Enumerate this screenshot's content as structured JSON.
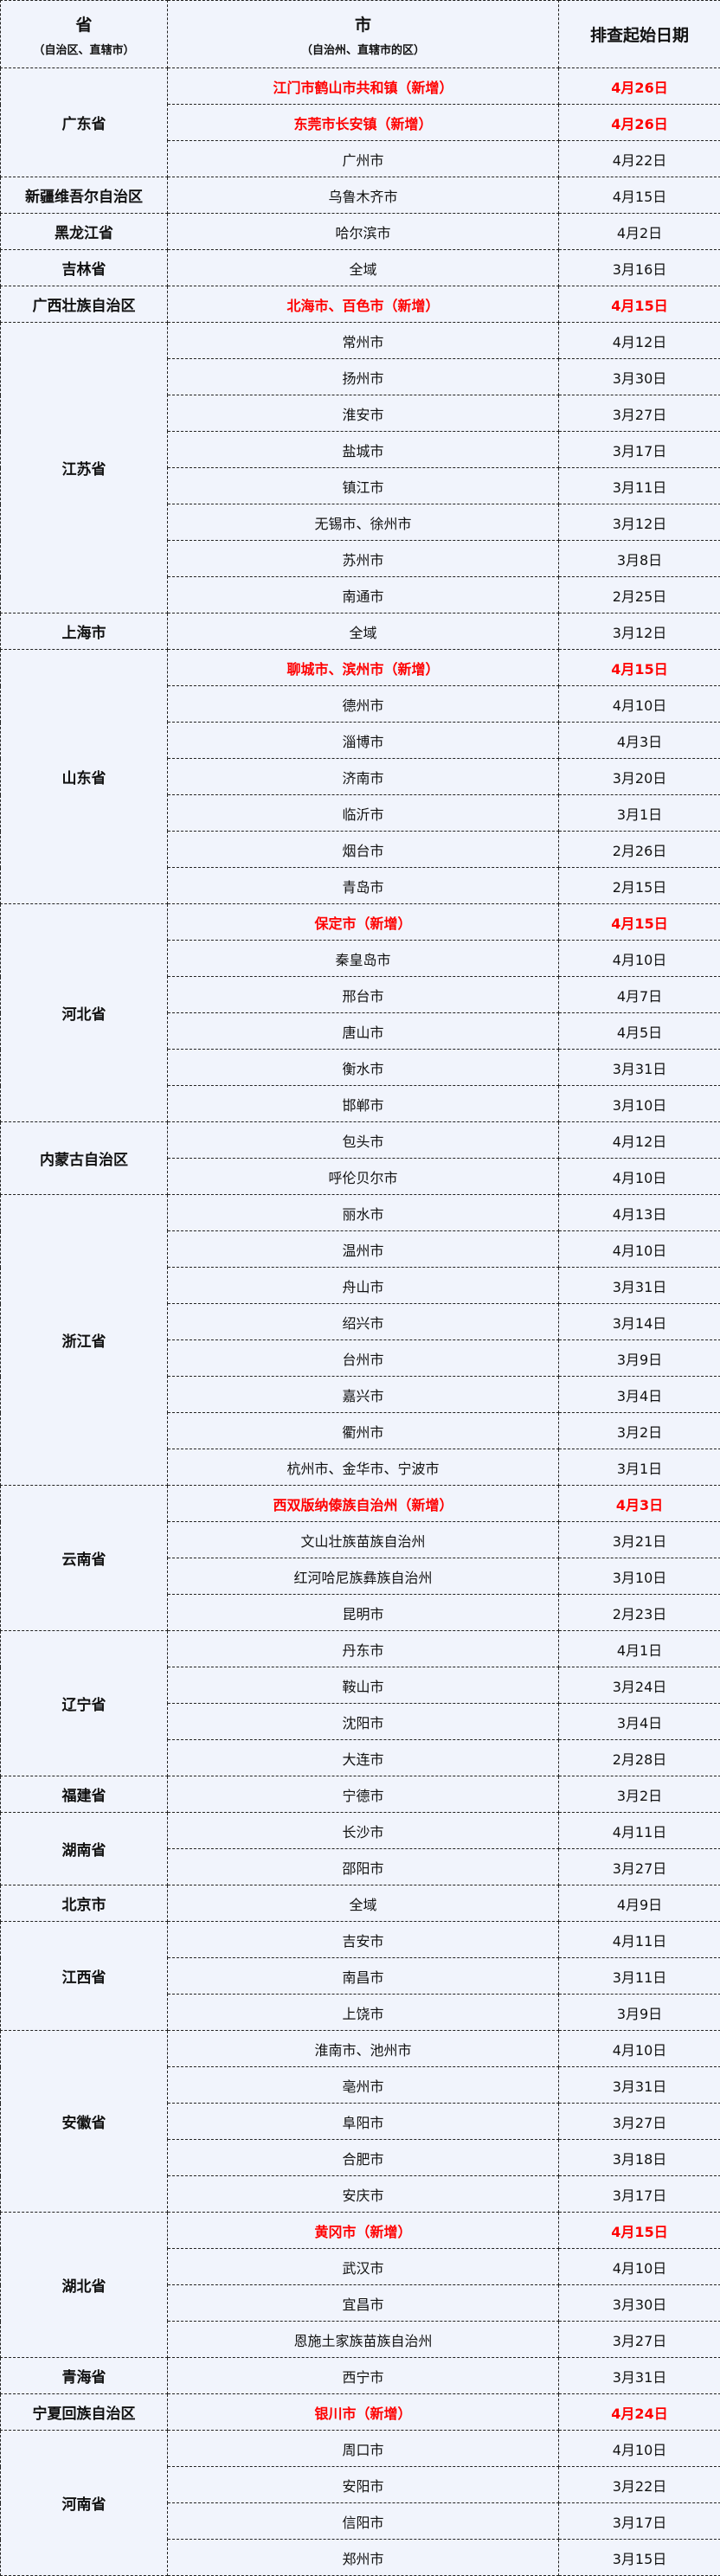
{
  "header": {
    "province": "省",
    "province_sub": "（自治区、直辖市）",
    "city": "市",
    "city_sub": "（自治州、直辖市的区）",
    "date": "排查起始日期"
  },
  "colors": {
    "new_highlight": "#ff0000",
    "background": "#f1f4fc"
  },
  "provinces": [
    {
      "name": "广东省",
      "cities": [
        {
          "name": "江门市鹤山市共和镇（新增）",
          "date": "4月26日",
          "new": true
        },
        {
          "name": "东莞市长安镇（新增）",
          "date": "4月26日",
          "new": true
        },
        {
          "name": "广州市",
          "date": "4月22日"
        }
      ]
    },
    {
      "name": "新疆维吾尔自治区",
      "cities": [
        {
          "name": "乌鲁木齐市",
          "date": "4月15日"
        }
      ]
    },
    {
      "name": "黑龙江省",
      "cities": [
        {
          "name": "哈尔滨市",
          "date": "4月2日"
        }
      ]
    },
    {
      "name": "吉林省",
      "cities": [
        {
          "name": "全域",
          "date": "3月16日"
        }
      ]
    },
    {
      "name": "广西壮族自治区",
      "cities": [
        {
          "name": "北海市、百色市（新增）",
          "date": "4月15日",
          "new": true
        }
      ]
    },
    {
      "name": "江苏省",
      "cities": [
        {
          "name": "常州市",
          "date": "4月12日"
        },
        {
          "name": "扬州市",
          "date": "3月30日"
        },
        {
          "name": "淮安市",
          "date": "3月27日"
        },
        {
          "name": "盐城市",
          "date": "3月17日"
        },
        {
          "name": "镇江市",
          "date": "3月11日"
        },
        {
          "name": "无锡市、徐州市",
          "date": "3月12日"
        },
        {
          "name": "苏州市",
          "date": "3月8日"
        },
        {
          "name": "南通市",
          "date": "2月25日"
        }
      ]
    },
    {
      "name": "上海市",
      "cities": [
        {
          "name": "全域",
          "date": "3月12日"
        }
      ]
    },
    {
      "name": "山东省",
      "cities": [
        {
          "name": "聊城市、滨州市（新增）",
          "date": "4月15日",
          "new": true
        },
        {
          "name": "德州市",
          "date": "4月10日"
        },
        {
          "name": "淄博市",
          "date": "4月3日"
        },
        {
          "name": "济南市",
          "date": "3月20日"
        },
        {
          "name": "临沂市",
          "date": "3月1日"
        },
        {
          "name": "烟台市",
          "date": "2月26日"
        },
        {
          "name": "青岛市",
          "date": "2月15日"
        }
      ]
    },
    {
      "name": "河北省",
      "cities": [
        {
          "name": "保定市（新增）",
          "date": "4月15日",
          "new": true
        },
        {
          "name": "秦皇岛市",
          "date": "4月10日"
        },
        {
          "name": "邢台市",
          "date": "4月7日"
        },
        {
          "name": "唐山市",
          "date": "4月5日"
        },
        {
          "name": "衡水市",
          "date": "3月31日"
        },
        {
          "name": "邯郸市",
          "date": "3月10日"
        }
      ]
    },
    {
      "name": "内蒙古自治区",
      "cities": [
        {
          "name": "包头市",
          "date": "4月12日"
        },
        {
          "name": "呼伦贝尔市",
          "date": "4月10日"
        }
      ]
    },
    {
      "name": "浙江省",
      "cities": [
        {
          "name": "丽水市",
          "date": "4月13日"
        },
        {
          "name": "温州市",
          "date": "4月10日"
        },
        {
          "name": "舟山市",
          "date": "3月31日"
        },
        {
          "name": "绍兴市",
          "date": "3月14日"
        },
        {
          "name": "台州市",
          "date": "3月9日"
        },
        {
          "name": "嘉兴市",
          "date": "3月4日"
        },
        {
          "name": "衢州市",
          "date": "3月2日"
        },
        {
          "name": "杭州市、金华市、宁波市",
          "date": "3月1日"
        }
      ]
    },
    {
      "name": "云南省",
      "cities": [
        {
          "name": "西双版纳傣族自治州（新增）",
          "date": "4月3日",
          "new": true
        },
        {
          "name": "文山壮族苗族自治州",
          "date": "3月21日"
        },
        {
          "name": "红河哈尼族彝族自治州",
          "date": "3月10日"
        },
        {
          "name": "昆明市",
          "date": "2月23日"
        }
      ]
    },
    {
      "name": "辽宁省",
      "cities": [
        {
          "name": "丹东市",
          "date": "4月1日"
        },
        {
          "name": "鞍山市",
          "date": "3月24日"
        },
        {
          "name": "沈阳市",
          "date": "3月4日"
        },
        {
          "name": "大连市",
          "date": "2月28日"
        }
      ]
    },
    {
      "name": "福建省",
      "cities": [
        {
          "name": "宁德市",
          "date": "3月2日"
        }
      ]
    },
    {
      "name": "湖南省",
      "cities": [
        {
          "name": "长沙市",
          "date": "4月11日"
        },
        {
          "name": "邵阳市",
          "date": "3月27日"
        }
      ]
    },
    {
      "name": "北京市",
      "cities": [
        {
          "name": "全域",
          "date": "4月9日"
        }
      ]
    },
    {
      "name": "江西省",
      "cities": [
        {
          "name": "吉安市",
          "date": "4月11日"
        },
        {
          "name": "南昌市",
          "date": "3月11日"
        },
        {
          "name": "上饶市",
          "date": "3月9日"
        }
      ]
    },
    {
      "name": "安徽省",
      "cities": [
        {
          "name": "淮南市、池州市",
          "date": "4月10日"
        },
        {
          "name": "亳州市",
          "date": "3月31日"
        },
        {
          "name": "阜阳市",
          "date": "3月27日"
        },
        {
          "name": "合肥市",
          "date": "3月18日"
        },
        {
          "name": "安庆市",
          "date": "3月17日"
        }
      ]
    },
    {
      "name": "湖北省",
      "cities": [
        {
          "name": "黄冈市（新增）",
          "date": "4月15日",
          "new": true
        },
        {
          "name": "武汉市",
          "date": "4月10日"
        },
        {
          "name": "宜昌市",
          "date": "3月30日"
        },
        {
          "name": "恩施土家族苗族自治州",
          "date": "3月27日"
        }
      ]
    },
    {
      "name": "青海省",
      "cities": [
        {
          "name": "西宁市",
          "date": "3月31日"
        }
      ]
    },
    {
      "name": "宁夏回族自治区",
      "cities": [
        {
          "name": "银川市（新增）",
          "date": "4月24日",
          "new": true
        }
      ]
    },
    {
      "name": "河南省",
      "cities": [
        {
          "name": "周口市",
          "date": "4月10日"
        },
        {
          "name": "安阳市",
          "date": "3月22日"
        },
        {
          "name": "信阳市",
          "date": "3月17日"
        },
        {
          "name": "郑州市",
          "date": "3月15日"
        }
      ]
    }
  ]
}
